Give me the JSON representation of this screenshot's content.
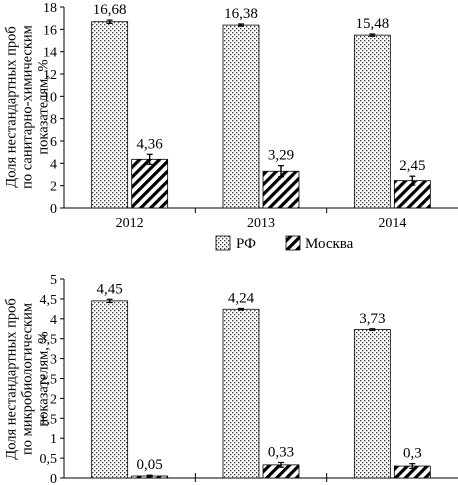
{
  "chart_data": [
    {
      "type": "bar",
      "categories": [
        "2012",
        "2013",
        "2014"
      ],
      "series": [
        {
          "name": "РФ",
          "values": [
            16.68,
            16.38,
            15.48
          ],
          "labels": [
            "16,68",
            "16,38",
            "15,48"
          ],
          "errors": [
            0.15,
            0.1,
            0.1
          ]
        },
        {
          "name": "Москва",
          "values": [
            4.36,
            3.29,
            2.45
          ],
          "labels": [
            "4,36",
            "3,29",
            "2,45"
          ],
          "errors": [
            0.45,
            0.5,
            0.4
          ]
        }
      ],
      "ylabel_lines": [
        "Доля нестандартных проб",
        "по санитарно-химическим",
        "показателям, %"
      ],
      "ylim": [
        0,
        18
      ],
      "yticks": [
        0,
        2,
        4,
        6,
        8,
        10,
        12,
        14,
        16,
        18
      ],
      "ytick_labels": [
        "0",
        "2",
        "4",
        "6",
        "8",
        "10",
        "12",
        "14",
        "16",
        "18"
      ],
      "grid": false,
      "legend": "bottom"
    },
    {
      "type": "bar",
      "categories": [
        "2012",
        "2013",
        "2014"
      ],
      "series": [
        {
          "name": "РФ",
          "values": [
            4.45,
            4.24,
            3.73
          ],
          "labels": [
            "4,45",
            "4,24",
            "3,73"
          ],
          "errors": [
            0.04,
            0.02,
            0.02
          ]
        },
        {
          "name": "Москва",
          "values": [
            0.05,
            0.33,
            0.3
          ],
          "labels": [
            "0,05",
            "0,33",
            "0,3"
          ],
          "errors": [
            0.02,
            0.06,
            0.06
          ]
        }
      ],
      "ylabel_lines": [
        "Доля нестандартных проб",
        "по микробиологическим",
        "показателям, %"
      ],
      "ylim": [
        0,
        5
      ],
      "yticks": [
        0,
        0.5,
        1,
        1.5,
        2,
        2.5,
        3,
        3.5,
        4,
        4.5,
        5
      ],
      "ytick_labels": [
        "0",
        "0,5",
        "1",
        "1,5",
        "2",
        "2,5",
        "3",
        "3,5",
        "4",
        "4,5",
        "5"
      ],
      "grid": false,
      "legend": "none"
    }
  ],
  "legend": {
    "items": [
      {
        "label": "РФ",
        "pattern": "dots"
      },
      {
        "label": "Москва",
        "pattern": "hatch"
      }
    ]
  }
}
